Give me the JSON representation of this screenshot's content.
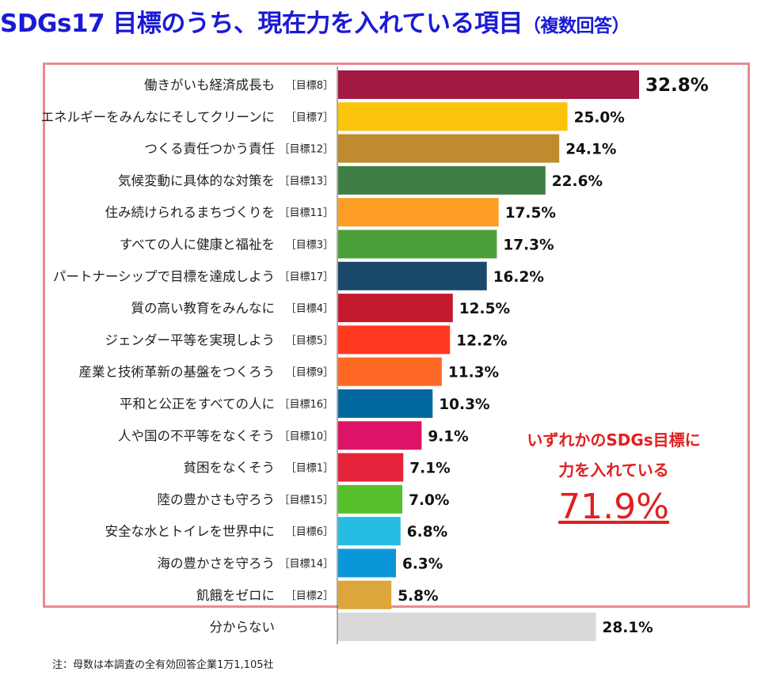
{
  "title": {
    "main": "SDGs17 目標のうち、現在力を入れている項目",
    "sub": "（複数回答）"
  },
  "callout": {
    "line1": "いずれかのSDGs目標に",
    "line2": "力を入れている",
    "value": "71.9%"
  },
  "note": "注：母数は本調査の全有効回答企業1万1,105社",
  "chart_data": {
    "type": "bar",
    "orientation": "horizontal",
    "title": "SDGs17 目標のうち、現在力を入れている項目（複数回答）",
    "unit": "%",
    "categories": [
      {
        "label": "働きがいも経済成長も",
        "tag": "［目標8］",
        "value": 32.8,
        "color": "#A21942"
      },
      {
        "label": "エネルギーをみんなにそしてクリーンに",
        "tag": "［目標7］",
        "value": 25.0,
        "color": "#FCC30B"
      },
      {
        "label": "つくる責任つかう責任",
        "tag": "［目標12］",
        "value": 24.1,
        "color": "#BF8B2E"
      },
      {
        "label": "気候変動に具体的な対策を",
        "tag": "［目標13］",
        "value": 22.6,
        "color": "#3F7E44"
      },
      {
        "label": "住み続けられるまちづくりを",
        "tag": "［目標11］",
        "value": 17.5,
        "color": "#FD9D24"
      },
      {
        "label": "すべての人に健康と福祉を",
        "tag": "［目標3］",
        "value": 17.3,
        "color": "#4C9F38"
      },
      {
        "label": "パートナーシップで目標を達成しよう",
        "tag": "［目標17］",
        "value": 16.2,
        "color": "#19486A"
      },
      {
        "label": "質の高い教育をみんなに",
        "tag": "［目標4］",
        "value": 12.5,
        "color": "#C5192D"
      },
      {
        "label": "ジェンダー平等を実現しよう",
        "tag": "［目標5］",
        "value": 12.2,
        "color": "#FF3A21"
      },
      {
        "label": "産業と技術革新の基盤をつくろう",
        "tag": "［目標9］",
        "value": 11.3,
        "color": "#FD6925"
      },
      {
        "label": "平和と公正をすべての人に",
        "tag": "［目標16］",
        "value": 10.3,
        "color": "#00689D"
      },
      {
        "label": "人や国の不平等をなくそう",
        "tag": "［目標10］",
        "value": 9.1,
        "color": "#DD1367"
      },
      {
        "label": "貧困をなくそう",
        "tag": "［目標1］",
        "value": 7.1,
        "color": "#E5243B"
      },
      {
        "label": "陸の豊かさも守ろう",
        "tag": "［目標15］",
        "value": 7.0,
        "color": "#56C02B"
      },
      {
        "label": "安全な水とトイレを世界中に",
        "tag": "［目標6］",
        "value": 6.8,
        "color": "#26BDE2"
      },
      {
        "label": "海の豊かさを守ろう",
        "tag": "［目標14］",
        "value": 6.3,
        "color": "#0A97D9"
      },
      {
        "label": "飢餓をゼロに",
        "tag": "［目標2］",
        "value": 5.8,
        "color": "#DDA63A"
      },
      {
        "label": "分からない",
        "tag": "",
        "value": 28.1,
        "color": "#D9D9D9"
      }
    ],
    "value_labels": [
      "32.8%",
      "25.0%",
      "24.1%",
      "22.6%",
      "17.5%",
      "17.3%",
      "16.2%",
      "12.5%",
      "12.2%",
      "11.3%",
      "10.3%",
      "9.1%",
      "7.1%",
      "7.0%",
      "6.8%",
      "6.3%",
      "5.8%",
      "28.1%"
    ],
    "xlim": [
      0,
      35
    ],
    "grid": false,
    "legend": "none"
  }
}
